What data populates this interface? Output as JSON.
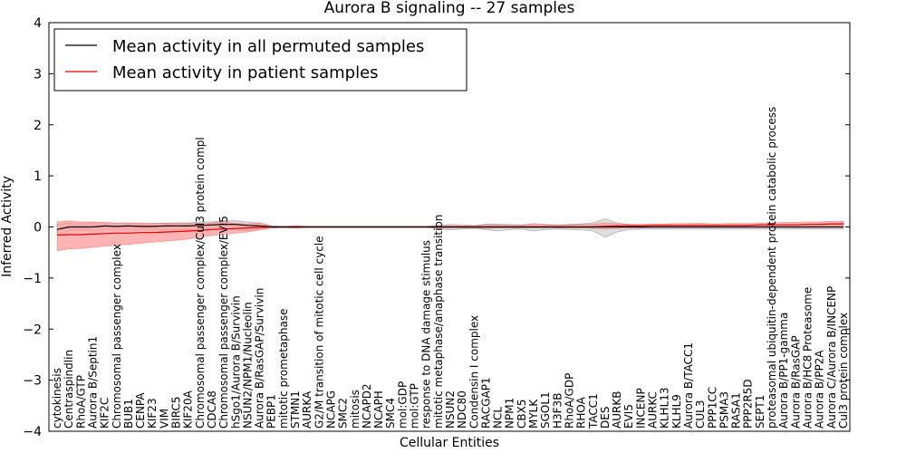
{
  "chart_data": {
    "type": "line",
    "title": "Aurora B signaling -- 27 samples",
    "xlabel": "Cellular Entities",
    "ylabel": "Inferred Activity",
    "ylim": [
      -4,
      4
    ],
    "yticks": [
      "-4",
      "-3",
      "-2",
      "-1",
      "0",
      "1",
      "2",
      "3",
      "4"
    ],
    "legend_position": "top-left",
    "categories": [
      "cytokinesis",
      "Centraspindlin",
      "RhoA/GTP",
      "Aurora B/Septin1",
      "KIF2C",
      "Chromosomal passenger complex",
      "BUB1",
      "CENPA",
      "KIF23",
      "VIM",
      "BIRC5",
      "KIF20A",
      "Chromosomal passenger complex/Cul3 protein compl",
      "CDCA8",
      "Chromosomal passenger complex/EVI5",
      "hSgo1/Aurora B/Survivin",
      "NSUN2/NPM1/Nucleolin",
      "Aurora B/RasGAP/Survivin",
      "PEBP1",
      "mitotic prometaphase",
      "STMN1",
      "AURKA",
      "G2/M transition of mitotic cell cycle",
      "NCAPG",
      "SMC2",
      "mitosis",
      "NCAPD2",
      "NCAPH",
      "SMC4",
      "mol:GDP",
      "mol:GTP",
      "response to DNA damage stimulus",
      "mitotic metaphase/anaphase transition",
      "NSUN2",
      "NDC80",
      "Condensin I complex",
      "RACGAP1",
      "NCL",
      "NPM1",
      "CBX5",
      "MYLK",
      "SGOL1",
      "H3F3B",
      "RhoA/GDP",
      "RHOA",
      "TACC1",
      "DES",
      "AURKB",
      "EVI5",
      "INCENP",
      "AURKC",
      "KLHL13",
      "KLHL9",
      "Aurora B/TACC1",
      "CUL3",
      "PPP1CC",
      "PSMA3",
      "RASA1",
      "PPP2R5D",
      "SEPT1",
      "proteasomal ubiquitin-dependent protein catabolic process",
      "Aurora B/PP1-gamma",
      "Aurora B/RasGAP",
      "Aurora B/HC8 Proteasome",
      "Aurora B/PP2A",
      "Aurora C/Aurora B/INCENP",
      "Cul3 protein complex"
    ],
    "series": [
      {
        "name": "Mean activity in all permuted samples",
        "color": "#000000",
        "band_color": "#c8c8c8",
        "values": [
          -0.05,
          0.0,
          0.0,
          0.0,
          0.02,
          0.01,
          0.02,
          0.01,
          0.01,
          0.02,
          0.02,
          0.02,
          0.03,
          0.04,
          0.05,
          0.05,
          0.03,
          0.02,
          0.0,
          0.0,
          0.0,
          0.0,
          0.0,
          0.0,
          0.0,
          0.0,
          0.0,
          0.0,
          0.0,
          0.0,
          0.0,
          0.0,
          0.0,
          0.0,
          0.0,
          0.0,
          0.0,
          0.0,
          0.0,
          0.0,
          0.0,
          0.0,
          0.0,
          0.0,
          0.0,
          0.0,
          0.0,
          0.0,
          0.0,
          0.0,
          0.0,
          0.0,
          0.0,
          0.0,
          0.0,
          0.0,
          0.0,
          0.0,
          0.0,
          0.0,
          0.0,
          0.0,
          0.0,
          0.0,
          0.0,
          0.0,
          0.0
        ],
        "lower": [
          -0.15,
          -0.08,
          -0.06,
          -0.08,
          -0.05,
          -0.06,
          -0.05,
          -0.05,
          -0.06,
          -0.05,
          -0.05,
          -0.06,
          -0.06,
          -0.04,
          -0.05,
          -0.05,
          -0.08,
          -0.05,
          -0.02,
          -0.01,
          -0.01,
          -0.01,
          -0.01,
          -0.01,
          -0.01,
          -0.01,
          -0.01,
          -0.01,
          -0.01,
          -0.01,
          -0.01,
          -0.01,
          -0.03,
          -0.06,
          -0.04,
          -0.03,
          -0.05,
          -0.08,
          -0.05,
          -0.04,
          -0.08,
          -0.05,
          -0.04,
          -0.05,
          -0.06,
          -0.08,
          -0.2,
          -0.1,
          -0.05,
          -0.04,
          -0.04,
          -0.04,
          -0.04,
          -0.04,
          -0.04,
          -0.04,
          -0.04,
          -0.04,
          -0.04,
          -0.04,
          -0.04,
          -0.04,
          -0.04,
          -0.04,
          -0.04,
          -0.04,
          -0.04
        ],
        "upper": [
          0.05,
          0.08,
          0.06,
          0.08,
          0.08,
          0.07,
          0.08,
          0.06,
          0.07,
          0.08,
          0.08,
          0.08,
          0.1,
          0.1,
          0.12,
          0.12,
          0.1,
          0.08,
          0.02,
          0.01,
          0.01,
          0.01,
          0.01,
          0.01,
          0.01,
          0.01,
          0.01,
          0.01,
          0.01,
          0.01,
          0.01,
          0.01,
          0.03,
          0.05,
          0.04,
          0.03,
          0.05,
          0.05,
          0.05,
          0.04,
          0.05,
          0.05,
          0.04,
          0.05,
          0.06,
          0.08,
          0.16,
          0.08,
          0.05,
          0.04,
          0.04,
          0.04,
          0.04,
          0.04,
          0.04,
          0.04,
          0.04,
          0.04,
          0.04,
          0.04,
          0.04,
          0.04,
          0.04,
          0.04,
          0.04,
          0.04,
          0.04
        ]
      },
      {
        "name": "Mean activity in patient samples",
        "color": "#e00000",
        "band_color": "#ff9999",
        "values": [
          -0.16,
          -0.15,
          -0.15,
          -0.14,
          -0.13,
          -0.12,
          -0.12,
          -0.11,
          -0.11,
          -0.1,
          -0.09,
          -0.08,
          -0.07,
          -0.05,
          -0.04,
          -0.03,
          -0.02,
          -0.01,
          0.0,
          0.0,
          0.0,
          0.0,
          0.0,
          0.0,
          0.0,
          0.0,
          0.0,
          0.0,
          0.0,
          0.0,
          0.0,
          0.0,
          0.0,
          0.0,
          0.0,
          0.0,
          0.0,
          0.0,
          0.0,
          0.0,
          0.0,
          0.0,
          0.0,
          0.0,
          0.0,
          0.0,
          0.01,
          0.02,
          0.02,
          0.02,
          0.03,
          0.03,
          0.03,
          0.03,
          0.03,
          0.03,
          0.03,
          0.03,
          0.03,
          0.04,
          0.04,
          0.04,
          0.04,
          0.05,
          0.05,
          0.06,
          0.06
        ],
        "lower": [
          -0.47,
          -0.43,
          -0.42,
          -0.4,
          -0.38,
          -0.36,
          -0.34,
          -0.32,
          -0.3,
          -0.28,
          -0.26,
          -0.24,
          -0.2,
          -0.17,
          -0.14,
          -0.12,
          -0.1,
          -0.06,
          -0.02,
          -0.01,
          -0.03,
          -0.01,
          -0.01,
          -0.01,
          -0.01,
          -0.01,
          -0.01,
          -0.01,
          -0.01,
          -0.01,
          -0.01,
          -0.01,
          -0.02,
          -0.02,
          -0.02,
          -0.02,
          -0.03,
          -0.02,
          -0.02,
          -0.02,
          -0.02,
          -0.02,
          -0.02,
          -0.02,
          -0.02,
          -0.03,
          -0.04,
          -0.03,
          -0.02,
          -0.02,
          -0.01,
          -0.01,
          -0.01,
          -0.01,
          -0.01,
          -0.01,
          -0.01,
          -0.01,
          -0.01,
          -0.01,
          -0.01,
          -0.01,
          -0.01,
          -0.01,
          -0.01,
          -0.01,
          -0.01
        ],
        "upper": [
          0.1,
          0.12,
          0.1,
          0.1,
          0.09,
          0.08,
          0.08,
          0.08,
          0.07,
          0.07,
          0.08,
          0.07,
          0.07,
          0.08,
          0.1,
          0.07,
          0.06,
          0.08,
          0.02,
          0.01,
          0.03,
          0.01,
          0.01,
          0.01,
          0.01,
          0.01,
          0.01,
          0.01,
          0.01,
          0.01,
          0.01,
          0.01,
          0.02,
          0.02,
          0.02,
          0.02,
          0.05,
          0.04,
          0.03,
          0.03,
          0.07,
          0.04,
          0.03,
          0.04,
          0.05,
          0.05,
          0.08,
          0.06,
          0.05,
          0.05,
          0.06,
          0.06,
          0.07,
          0.07,
          0.08,
          0.06,
          0.07,
          0.07,
          0.07,
          0.08,
          0.08,
          0.09,
          0.09,
          0.1,
          0.1,
          0.11,
          0.11
        ]
      }
    ]
  }
}
